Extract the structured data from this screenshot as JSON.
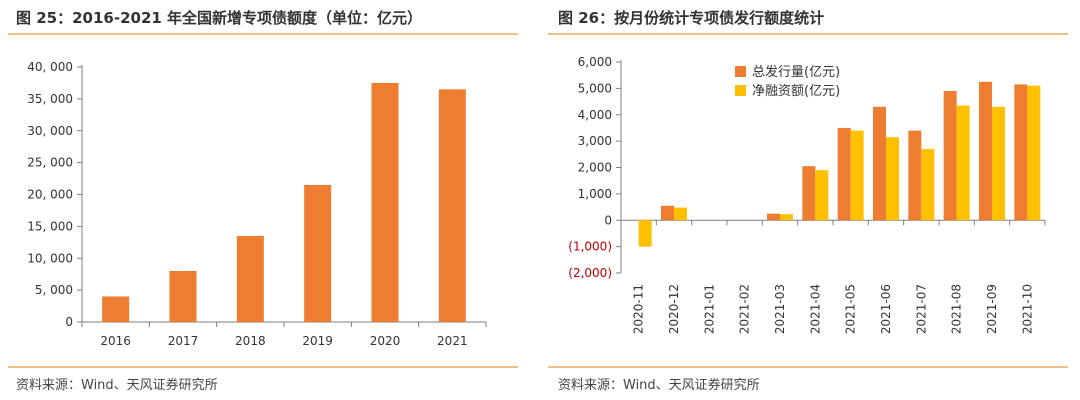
{
  "left_panel": {
    "title": "图 25：2016-2021 年全国新增专项债额度（单位：亿元）",
    "source": "资料来源：Wind、天风证券研究所"
  },
  "right_panel": {
    "title": "图 26：按月份统计专项债发行额度统计",
    "source": "资料来源：Wind、天风证券研究所"
  },
  "colors": {
    "orange": "#ed7d31",
    "gold": "#ffc000",
    "negative_tick": "#c00000",
    "rule": "#f0c08a",
    "axis": "#7f7f7f"
  },
  "chart_data": [
    {
      "type": "bar",
      "title": "图 25：2016-2021 年全国新增专项债额度（单位：亿元）",
      "categories": [
        "2016",
        "2017",
        "2018",
        "2019",
        "2020",
        "2021"
      ],
      "values": [
        4000,
        8000,
        13500,
        21500,
        37500,
        36500
      ],
      "ylim": [
        0,
        40000
      ],
      "yticks": [
        0,
        5000,
        10000,
        15000,
        20000,
        25000,
        30000,
        35000,
        40000
      ],
      "ytick_labels": [
        "0",
        "5, 000",
        "10, 000",
        "15, 000",
        "20, 000",
        "25, 000",
        "30, 000",
        "35, 000",
        "40, 000"
      ],
      "grid": false,
      "legend": "none"
    },
    {
      "type": "bar",
      "title": "图 26：按月份统计专项债发行额度统计",
      "categories": [
        "2020-11",
        "2020-12",
        "2021-01",
        "2021-02",
        "2021-03",
        "2021-04",
        "2021-05",
        "2021-06",
        "2021-07",
        "2021-08",
        "2021-09",
        "2021-10"
      ],
      "series": [
        {
          "name": "总发行量(亿元)",
          "values": [
            0,
            550,
            0,
            0,
            250,
            2050,
            3500,
            4300,
            3400,
            4900,
            5250,
            5150
          ]
        },
        {
          "name": "净融资额(亿元)",
          "values": [
            -1000,
            480,
            0,
            0,
            230,
            1900,
            3400,
            3150,
            2700,
            4350,
            4300,
            5100
          ]
        }
      ],
      "ylim": [
        -2000,
        6000
      ],
      "yticks": [
        -2000,
        -1000,
        0,
        1000,
        2000,
        3000,
        4000,
        5000,
        6000
      ],
      "ytick_labels": [
        "(2,000)",
        "(1,000)",
        "0",
        "1,000",
        "2,000",
        "3,000",
        "4,000",
        "5,000",
        "6,000"
      ],
      "grid": false,
      "legend": "top-left"
    }
  ]
}
